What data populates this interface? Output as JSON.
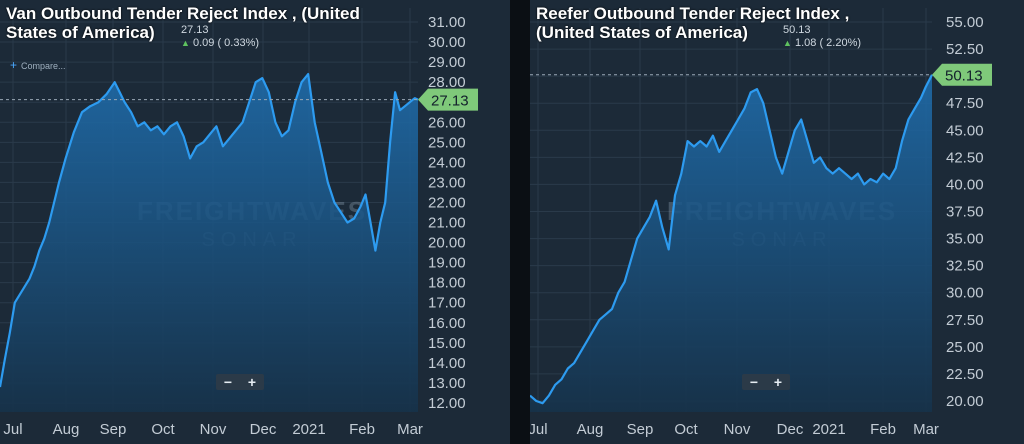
{
  "chart_data": [
    {
      "type": "area",
      "title": "Van Outbound Tender Reject Index , (United States of America)",
      "title_lines": [
        "Van Outbound Tender Reject Index , (United",
        "States of America)"
      ],
      "current_value": "27.13",
      "change_text": "0.09 ( 0.33%)",
      "last_label": "27.13",
      "compare_label": "Compare...",
      "xticks": [
        "Jul",
        "Aug",
        "Sep",
        "Oct",
        "Nov",
        "Dec",
        "2021",
        "Feb",
        "Mar"
      ],
      "yticks": [
        "31.00",
        "30.00",
        "29.00",
        "28.00",
        "27.00",
        "26.00",
        "25.00",
        "24.00",
        "23.00",
        "22.00",
        "21.00",
        "20.00",
        "19.00",
        "18.00",
        "17.00",
        "16.00",
        "15.00",
        "14.00",
        "13.00",
        "12.00"
      ],
      "ylim": [
        12,
        31
      ],
      "x_range": [
        "2020-06-26",
        "2021-03-08"
      ],
      "grid": true,
      "series": [
        {
          "x": [
            "2020-06-26",
            "2020-06-29",
            "2020-07-02",
            "2020-07-05",
            "2020-07-08",
            "2020-07-11",
            "2020-07-14",
            "2020-07-17",
            "2020-07-20",
            "2020-07-23",
            "2020-07-26",
            "2020-07-29",
            "2020-08-01",
            "2020-08-05",
            "2020-08-10",
            "2020-08-15",
            "2020-08-20",
            "2020-08-25",
            "2020-08-30",
            "2020-09-04",
            "2020-09-07",
            "2020-09-10",
            "2020-09-14",
            "2020-09-18",
            "2020-09-22",
            "2020-09-26",
            "2020-09-30",
            "2020-10-04",
            "2020-10-08",
            "2020-10-12",
            "2020-10-16",
            "2020-10-20",
            "2020-10-24",
            "2020-10-28",
            "2020-11-01",
            "2020-11-05",
            "2020-11-09",
            "2020-11-13",
            "2020-11-17",
            "2020-11-21",
            "2020-11-25",
            "2020-11-29",
            "2020-12-03",
            "2020-12-07",
            "2020-12-11",
            "2020-12-15",
            "2020-12-19",
            "2020-12-23",
            "2020-12-27",
            "2020-12-31",
            "2021-01-04",
            "2021-01-08",
            "2021-01-12",
            "2021-01-16",
            "2021-01-20",
            "2021-01-24",
            "2021-01-28",
            "2021-02-01",
            "2021-02-04",
            "2021-02-07",
            "2021-02-10",
            "2021-02-13",
            "2021-02-16",
            "2021-02-19",
            "2021-02-22",
            "2021-02-25",
            "2021-02-28",
            "2021-03-03",
            "2021-03-06",
            "2021-03-08"
          ],
          "y": [
            12.8,
            14.2,
            15.5,
            17.0,
            17.4,
            17.8,
            18.2,
            18.8,
            19.6,
            20.2,
            21.0,
            22.0,
            23.0,
            24.2,
            25.5,
            26.5,
            26.8,
            27.0,
            27.4,
            28.0,
            27.5,
            27.0,
            26.5,
            25.8,
            26.0,
            25.6,
            25.8,
            25.4,
            25.8,
            26.0,
            25.3,
            24.2,
            24.8,
            25.0,
            25.4,
            25.8,
            24.8,
            25.2,
            25.6,
            26.0,
            27.0,
            28.0,
            28.2,
            27.5,
            26.0,
            25.3,
            25.6,
            27.0,
            28.0,
            28.4,
            26.0,
            24.5,
            23.0,
            22.0,
            21.5,
            21.0,
            21.2,
            21.8,
            22.4,
            21.0,
            19.6,
            21.0,
            22.0,
            25.0,
            27.5,
            26.6,
            26.8,
            27.0,
            27.2,
            27.13
          ]
        }
      ]
    },
    {
      "type": "area",
      "title": "Reefer Outbound Tender Reject Index , (United States of America)",
      "title_lines": [
        "Reefer Outbound Tender Reject Index ,",
        "(United States of America)"
      ],
      "current_value": "50.13",
      "change_text": "1.08 ( 2.20%)",
      "last_label": "50.13",
      "xticks": [
        "Jul",
        "Aug",
        "Sep",
        "Oct",
        "Nov",
        "Dec",
        "2021",
        "Feb",
        "Mar"
      ],
      "yticks": [
        "55.00",
        "52.50",
        "50.00",
        "47.50",
        "45.00",
        "42.50",
        "40.00",
        "37.50",
        "35.00",
        "32.50",
        "30.00",
        "27.50",
        "25.00",
        "22.50",
        "20.00"
      ],
      "ylim": [
        19,
        56
      ],
      "x_range": [
        "2020-06-26",
        "2021-03-08"
      ],
      "grid": true,
      "series": [
        {
          "x": [
            "2020-06-26",
            "2020-06-30",
            "2020-07-04",
            "2020-07-08",
            "2020-07-12",
            "2020-07-16",
            "2020-07-20",
            "2020-07-24",
            "2020-07-28",
            "2020-08-01",
            "2020-08-05",
            "2020-08-09",
            "2020-08-13",
            "2020-08-17",
            "2020-08-21",
            "2020-08-25",
            "2020-08-29",
            "2020-09-02",
            "2020-09-06",
            "2020-09-10",
            "2020-09-14",
            "2020-09-18",
            "2020-09-22",
            "2020-09-26",
            "2020-09-30",
            "2020-10-04",
            "2020-10-08",
            "2020-10-12",
            "2020-10-16",
            "2020-10-20",
            "2020-10-24",
            "2020-10-28",
            "2020-11-01",
            "2020-11-05",
            "2020-11-09",
            "2020-11-13",
            "2020-11-17",
            "2020-11-21",
            "2020-11-25",
            "2020-11-29",
            "2020-12-03",
            "2020-12-07",
            "2020-12-11",
            "2020-12-15",
            "2020-12-19",
            "2020-12-23",
            "2020-12-27",
            "2020-12-31",
            "2021-01-04",
            "2021-01-08",
            "2021-01-12",
            "2021-01-16",
            "2021-01-20",
            "2021-01-24",
            "2021-01-28",
            "2021-02-01",
            "2021-02-05",
            "2021-02-09",
            "2021-02-13",
            "2021-02-17",
            "2021-02-21",
            "2021-02-25",
            "2021-03-01",
            "2021-03-04",
            "2021-03-08"
          ],
          "y": [
            20.5,
            20.0,
            19.8,
            20.5,
            21.5,
            22.0,
            23.0,
            23.5,
            24.5,
            25.5,
            26.5,
            27.5,
            28.0,
            28.5,
            30.0,
            31.0,
            33.0,
            35.0,
            36.0,
            37.0,
            38.5,
            36.0,
            34.0,
            39.0,
            41.0,
            44.0,
            43.5,
            44.0,
            43.5,
            44.5,
            43.0,
            44.0,
            45.0,
            46.0,
            47.0,
            48.5,
            48.8,
            47.5,
            45.0,
            42.5,
            41.0,
            43.0,
            45.0,
            46.0,
            44.0,
            42.0,
            42.5,
            41.5,
            41.0,
            41.5,
            41.0,
            40.5,
            41.0,
            40.0,
            40.5,
            40.2,
            41.0,
            40.5,
            41.5,
            44.0,
            46.0,
            47.0,
            48.0,
            49.0,
            50.13
          ]
        }
      ]
    }
  ]
}
